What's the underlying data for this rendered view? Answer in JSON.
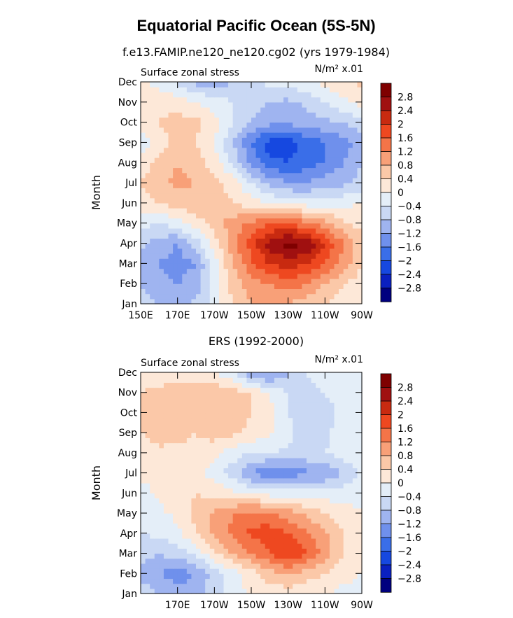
{
  "figure": {
    "title": "Equatorial Pacific Ocean (5S-5N)"
  },
  "palette": {
    "levels": [
      "-2.8",
      "-2.4",
      "-2",
      "-1.6",
      "-1.2",
      "-0.8",
      "-0.4",
      "0",
      "0.4",
      "0.8",
      "1.2",
      "1.6",
      "2",
      "2.4",
      "2.8"
    ],
    "colors": [
      "#00007f",
      "#0a20c0",
      "#1648e0",
      "#3a6ee8",
      "#6f90ec",
      "#9fb4f0",
      "#c9d8f4",
      "#e4eef8",
      "#fde8d8",
      "#fbc8a8",
      "#f8a078",
      "#f47448",
      "#ee4820",
      "#c82a10",
      "#a01010",
      "#7f0000"
    ]
  },
  "chart_data": [
    {
      "type": "heatmap",
      "title": "f.e13.FAMIP.ne120_ne120.cg02 (yrs 1979-1984)",
      "subtitle_left": "Surface zonal stress",
      "subtitle_right": "N/m² x.01",
      "ylabel": "Month",
      "x_ticks": [
        "150E",
        "170E",
        "170W",
        "150W",
        "130W",
        "110W",
        "90W"
      ],
      "x_tick_values": [
        150,
        170,
        190,
        210,
        230,
        250,
        270
      ],
      "xlim": [
        150,
        270
      ],
      "y_ticks": [
        "Jan",
        "Feb",
        "Mar",
        "Apr",
        "May",
        "Jun",
        "Jul",
        "Aug",
        "Sep",
        "Oct",
        "Nov",
        "Dec"
      ],
      "colorbar_labels": [
        "2.8",
        "2.4",
        "2",
        "1.6",
        "1.2",
        "0.8",
        "0.4",
        "0",
        "-0.4",
        "-0.8",
        "-1.2",
        "-1.6",
        "-2",
        "-2.4",
        "-2.8"
      ],
      "x": [
        150,
        160,
        170,
        180,
        190,
        200,
        210,
        220,
        230,
        240,
        250,
        260,
        270
      ],
      "z": [
        [
          -0.6,
          -0.8,
          -0.9,
          -0.7,
          -0.2,
          0.4,
          0.8,
          0.9,
          0.8,
          0.6,
          0.4,
          0.2,
          0.1
        ],
        [
          -0.8,
          -1.1,
          -1.2,
          -1.0,
          -0.3,
          0.6,
          1.0,
          1.2,
          1.4,
          1.2,
          0.8,
          0.4,
          0.2
        ],
        [
          -0.9,
          -1.2,
          -1.4,
          -1.2,
          -0.2,
          0.8,
          1.5,
          2.0,
          2.2,
          2.0,
          1.6,
          1.0,
          0.4
        ],
        [
          -0.7,
          -1.0,
          -1.2,
          -0.6,
          0.2,
          1.0,
          1.8,
          2.6,
          3.0,
          2.8,
          2.0,
          1.2,
          0.6
        ],
        [
          -0.3,
          -0.4,
          -0.2,
          0.2,
          0.6,
          1.0,
          1.3,
          1.6,
          1.6,
          1.3,
          0.9,
          0.5,
          0.2
        ],
        [
          0.2,
          0.4,
          0.6,
          0.7,
          0.6,
          0.4,
          0.2,
          0.0,
          -0.1,
          -0.2,
          -0.2,
          -0.1,
          0.0
        ],
        [
          0.4,
          0.7,
          0.9,
          0.8,
          0.6,
          0.2,
          -0.4,
          -0.9,
          -1.2,
          -1.2,
          -1.0,
          -0.9,
          -0.6
        ],
        [
          0.2,
          0.5,
          0.8,
          0.6,
          0.2,
          -0.5,
          -1.3,
          -1.9,
          -2.0,
          -1.8,
          -1.6,
          -1.2,
          -0.8
        ],
        [
          -0.2,
          0.2,
          0.5,
          0.4,
          0.0,
          -0.8,
          -1.6,
          -2.2,
          -2.2,
          -1.9,
          -1.6,
          -1.4,
          -1.0
        ],
        [
          0.1,
          0.4,
          0.6,
          0.5,
          0.2,
          -0.4,
          -0.8,
          -1.1,
          -1.1,
          -1.0,
          -0.9,
          -0.8,
          -0.6
        ],
        [
          0.2,
          0.3,
          0.2,
          0.0,
          -0.2,
          -0.4,
          -0.6,
          -0.8,
          -0.9,
          -0.7,
          -0.4,
          -0.1,
          0.2
        ],
        [
          0.1,
          -0.2,
          -0.5,
          -0.9,
          -1.0,
          -0.8,
          -0.5,
          -0.3,
          -0.2,
          -0.1,
          0.1,
          0.3,
          0.5
        ]
      ]
    },
    {
      "type": "heatmap",
      "title": "ERS (1992-2000)",
      "subtitle_left": "Surface zonal stress",
      "subtitle_right": "N/m² x.01",
      "ylabel": "Month",
      "x_ticks": [
        "170E",
        "170W",
        "150W",
        "130W",
        "110W",
        "90W"
      ],
      "x_tick_values": [
        170,
        190,
        210,
        230,
        250,
        270
      ],
      "xlim": [
        150,
        270
      ],
      "y_ticks": [
        "Jan",
        "Feb",
        "Mar",
        "Apr",
        "May",
        "Jun",
        "Jul",
        "Aug",
        "Sep",
        "Oct",
        "Nov",
        "Dec"
      ],
      "colorbar_labels": [
        "2.8",
        "2.4",
        "2",
        "1.6",
        "1.2",
        "0.8",
        "0.4",
        "0",
        "-0.4",
        "-0.8",
        "-1.2",
        "-1.6",
        "-2",
        "-2.4",
        "-2.8"
      ],
      "x": [
        150,
        160,
        170,
        180,
        190,
        200,
        210,
        220,
        230,
        240,
        250,
        260,
        270
      ],
      "z": [
        [
          -0.4,
          -0.8,
          -1.0,
          -1.0,
          -0.6,
          -0.2,
          0.1,
          0.2,
          0.2,
          0.1,
          0.0,
          -0.1,
          -0.1
        ],
        [
          -1.0,
          -1.2,
          -1.4,
          -1.2,
          -0.6,
          -0.2,
          0.2,
          0.6,
          0.8,
          0.6,
          0.4,
          0.1,
          0.0
        ],
        [
          -0.6,
          -0.8,
          -0.6,
          -0.3,
          0.3,
          0.8,
          1.2,
          1.6,
          2.0,
          1.6,
          1.0,
          0.4,
          0.1
        ],
        [
          -0.4,
          -0.3,
          -0.1,
          0.4,
          0.9,
          1.3,
          1.7,
          1.8,
          1.6,
          1.3,
          0.9,
          0.4,
          0.1
        ],
        [
          -0.3,
          -0.1,
          0.1,
          0.5,
          0.9,
          1.2,
          1.4,
          1.3,
          1.0,
          0.7,
          0.4,
          0.2,
          0.0
        ],
        [
          -0.2,
          0.1,
          0.3,
          0.4,
          0.3,
          0.1,
          -0.1,
          -0.2,
          -0.2,
          -0.2,
          -0.2,
          -0.2,
          -0.1
        ],
        [
          0.1,
          0.2,
          0.2,
          0.1,
          -0.2,
          -0.6,
          -1.2,
          -1.6,
          -1.4,
          -1.3,
          -1.2,
          -0.8,
          -0.3
        ],
        [
          0.2,
          0.3,
          0.3,
          0.3,
          0.1,
          -0.2,
          -0.4,
          -0.4,
          -0.5,
          -0.5,
          -0.4,
          -0.2,
          -0.1
        ],
        [
          0.4,
          0.6,
          0.5,
          0.4,
          0.6,
          0.5,
          0.3,
          0.1,
          -0.3,
          -0.6,
          -0.5,
          -0.2,
          -0.1
        ],
        [
          0.6,
          0.6,
          0.7,
          0.6,
          0.8,
          0.6,
          0.4,
          0.1,
          -0.4,
          -0.7,
          -0.6,
          -0.3,
          -0.1
        ],
        [
          0.4,
          0.5,
          0.6,
          0.6,
          0.7,
          0.6,
          0.4,
          0.0,
          -0.4,
          -0.6,
          -0.4,
          -0.1,
          0.0
        ],
        [
          0.2,
          0.2,
          0.2,
          0.1,
          0.0,
          -0.4,
          -1.2,
          -1.4,
          -0.8,
          -0.4,
          -0.2,
          0.0,
          0.0
        ]
      ]
    }
  ]
}
